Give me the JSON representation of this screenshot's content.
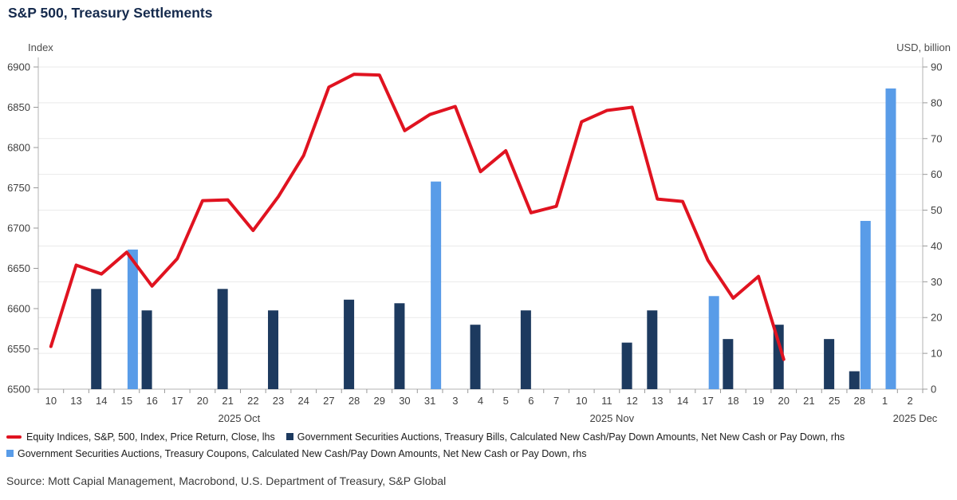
{
  "page": {
    "title": "S&P 500, Treasury Settlements"
  },
  "source": "Source: Mott Capial Management, Macrobond, U.S. Department of Treasury, S&P Global",
  "legend": [
    {
      "label": "Equity Indices, S&P, 500, Index, Price Return, Close, lhs",
      "swatch": "line",
      "color": "#e01320"
    },
    {
      "label": "Government Securities Auctions, Treasury Bills, Calculated New Cash/Pay Down Amounts, Net New Cash or Pay Down, rhs",
      "swatch": "square",
      "color": "#1d3a5f"
    },
    {
      "label": "Government Securities Auctions, Treasury Coupons, Calculated New Cash/Pay Down Amounts, Net New Cash or Pay Down, rhs",
      "swatch": "square",
      "color": "#599ce8"
    }
  ],
  "chart_data": {
    "type": "combo: line (lhs) + grouped bars (rhs)",
    "title": "S&P 500, Treasury Settlements",
    "grid": "horizontal gridlines at right-axis ticks, on",
    "legend_position": "bottom",
    "categories": [
      "10",
      "13",
      "14",
      "15",
      "16",
      "17",
      "20",
      "21",
      "22",
      "23",
      "24",
      "27",
      "28",
      "29",
      "30",
      "31",
      "3",
      "4",
      "5",
      "6",
      "7",
      "10",
      "11",
      "12",
      "13",
      "14",
      "17",
      "18",
      "19",
      "20",
      "21",
      "25",
      "28",
      "1",
      "2"
    ],
    "months": [
      {
        "label": "2025 Oct",
        "center_index": 7.45
      },
      {
        "label": "2025 Nov",
        "center_index": 22.2
      },
      {
        "label": "2025 Dec",
        "center_index": 34.2
      }
    ],
    "left_axis": {
      "label": "Index",
      "min": 6500,
      "max": 6900,
      "ticks": [
        6500,
        6550,
        6600,
        6650,
        6700,
        6750,
        6800,
        6850,
        6900
      ]
    },
    "right_axis": {
      "label": "USD, billion",
      "min": 0,
      "max": 90,
      "ticks": [
        0,
        10,
        20,
        30,
        40,
        50,
        60,
        70,
        80,
        90
      ]
    },
    "series": [
      {
        "name": "Equity Indices, S&P, 500, Index, Price Return, Close, lhs",
        "type": "line",
        "axis": "left",
        "color": "#e01320",
        "values": [
          6553,
          6654,
          6643,
          6670,
          6628,
          6662,
          6734,
          6735,
          6697,
          6739,
          6790,
          6875,
          6891,
          6890,
          6821,
          6841,
          6851,
          6770,
          6796,
          6719,
          6727,
          6832,
          6846,
          6850,
          6736,
          6733,
          6660,
          6613,
          6640,
          6537,
          null,
          null,
          null,
          null,
          null
        ]
      },
      {
        "name": "Government Securities Auctions, Treasury Bills, Calculated New Cash/Pay Down Amounts, Net New Cash or Pay Down, rhs",
        "type": "bar",
        "axis": "right",
        "color": "#1d3a5f",
        "values": [
          null,
          null,
          28,
          null,
          22,
          null,
          null,
          28,
          null,
          22,
          null,
          null,
          25,
          null,
          24,
          null,
          null,
          18,
          null,
          22,
          null,
          null,
          null,
          13,
          22,
          null,
          null,
          14,
          null,
          18,
          null,
          14,
          5,
          null,
          null
        ]
      },
      {
        "name": "Government Securities Auctions, Treasury Coupons, Calculated New Cash/Pay Down Amounts, Net New Cash or Pay Down, rhs",
        "type": "bar",
        "axis": "right",
        "color": "#599ce8",
        "values": [
          null,
          null,
          null,
          39,
          null,
          null,
          null,
          null,
          null,
          null,
          null,
          null,
          null,
          null,
          null,
          58,
          null,
          null,
          null,
          null,
          null,
          null,
          null,
          null,
          null,
          null,
          26,
          null,
          null,
          null,
          null,
          null,
          47,
          84,
          null
        ]
      }
    ]
  }
}
